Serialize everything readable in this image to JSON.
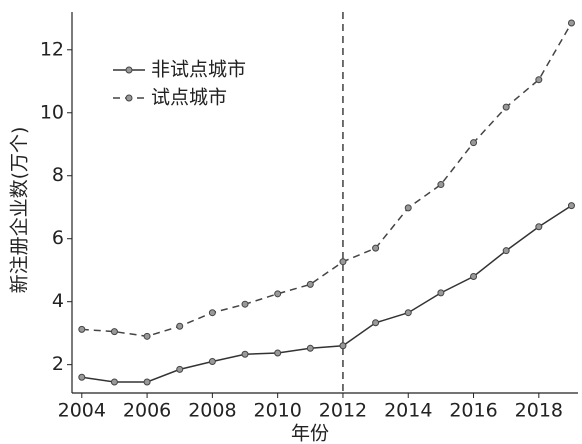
{
  "chart_data": {
    "type": "line",
    "x": [
      2004,
      2005,
      2006,
      2007,
      2008,
      2009,
      2010,
      2011,
      2012,
      2013,
      2014,
      2015,
      2016,
      2017,
      2018,
      2019
    ],
    "series": [
      {
        "name": "非试点城市",
        "color": "#333333",
        "dash": "solid",
        "values": [
          1.6,
          1.45,
          1.45,
          1.85,
          2.1,
          2.33,
          2.37,
          2.52,
          2.6,
          3.33,
          3.65,
          4.28,
          4.8,
          5.62,
          6.38,
          7.05
        ]
      },
      {
        "name": "试点城市",
        "color": "#444444",
        "dash": "dashed",
        "values": [
          3.12,
          3.05,
          2.9,
          3.22,
          3.65,
          3.92,
          4.25,
          4.55,
          5.27,
          5.7,
          6.98,
          7.72,
          9.05,
          10.18,
          11.05,
          12.85
        ]
      }
    ],
    "x_label": "年份",
    "y_label": "新注册企业数(万个)",
    "xlim": [
      2003.7,
      2019.2
    ],
    "xticks": [
      2004,
      2006,
      2008,
      2010,
      2012,
      2014,
      2016,
      2018
    ],
    "ylim": [
      1.1,
      13.2
    ],
    "yticks": [
      2,
      4,
      6,
      8,
      10,
      12
    ],
    "vline": 2012,
    "legend": "upper-left",
    "grid": false
  }
}
